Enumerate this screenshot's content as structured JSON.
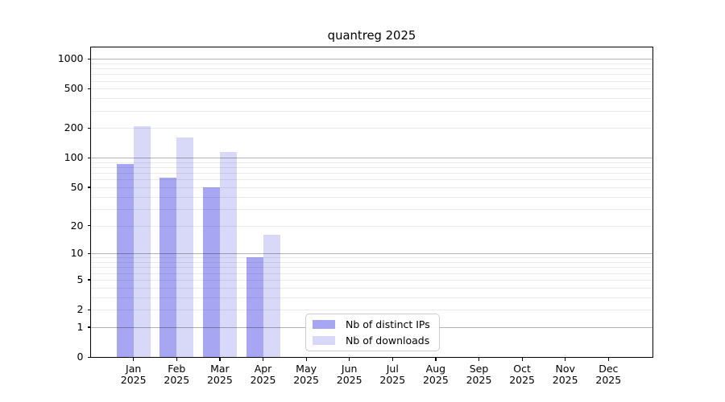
{
  "figure": {
    "title": "quantreg 2025"
  },
  "chart_data": {
    "type": "bar",
    "title": "quantreg 2025",
    "categories": [
      "Jan 2025",
      "Feb 2025",
      "Mar 2025",
      "Apr 2025",
      "May 2025",
      "Jun 2025",
      "Jul 2025",
      "Aug 2025",
      "Sep 2025",
      "Oct 2025",
      "Nov 2025",
      "Dec 2025"
    ],
    "series": [
      {
        "name": "Nb of distinct IPs",
        "color": "#a6a6f2",
        "values": [
          87,
          63,
          50,
          9,
          0,
          0,
          0,
          0,
          0,
          0,
          0,
          0
        ]
      },
      {
        "name": "Nb of downloads",
        "color": "#d8d8f8",
        "values": [
          210,
          162,
          114,
          16,
          0,
          0,
          0,
          0,
          0,
          0,
          0,
          0
        ]
      }
    ],
    "y_axis": {
      "tick_values": [
        0,
        1,
        2,
        5,
        10,
        20,
        50,
        100,
        200,
        500,
        1000
      ],
      "scale": "log10(value+1)",
      "range": [
        0,
        1285
      ]
    },
    "grid": {
      "shown": true,
      "major_at": [
        1,
        10,
        100,
        1000
      ],
      "minor_decades": [
        1,
        10,
        100
      ]
    },
    "legend": {
      "position": "inside-bottom-center"
    }
  },
  "colors": {
    "background": "#ffffff",
    "axis": "#000000",
    "text": "#000000",
    "grid_minor": "rgba(0,0,0,0.08)",
    "grid_major": "rgba(0,0,0,0.30)",
    "legend_border": "#cccccc",
    "series_ips": "#a6a6f2",
    "series_downloads": "#d8d8f8"
  }
}
